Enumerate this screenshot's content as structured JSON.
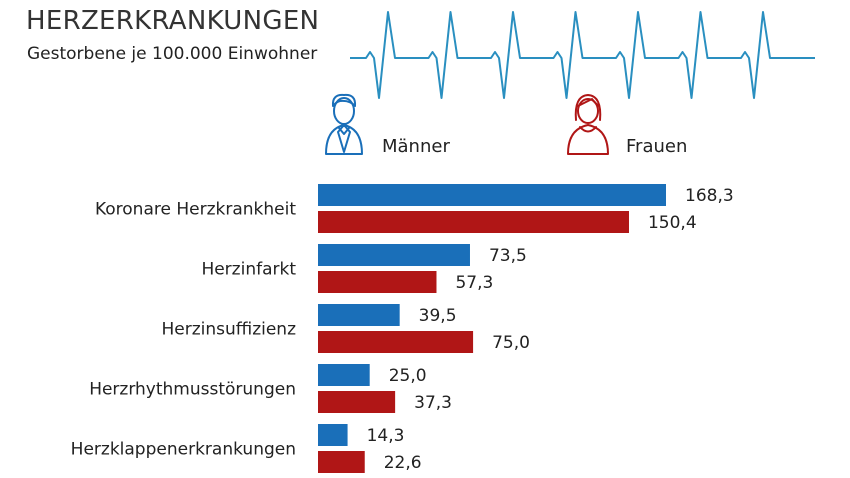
{
  "title": "HERZERKRANKUNGEN",
  "subtitle": "Gestorbene je 100.000 Einwohner",
  "colors": {
    "men": "#1a6fb9",
    "women": "#b01616",
    "ecg": "#2a8fc0"
  },
  "chart_data": {
    "type": "bar",
    "orientation": "horizontal",
    "categories": [
      "Koronare Herzkrankheit",
      "Herzinfarkt",
      "Herzinsuffizienz",
      "Herzrhythmusstörungen",
      "Herzklappenerkrankungen"
    ],
    "series": [
      {
        "name": "Männer",
        "values": [
          168.3,
          73.5,
          39.5,
          25.0,
          14.3
        ],
        "labels": [
          "168,3",
          "73,5",
          "39,5",
          "25,0",
          "14,3"
        ],
        "color": "#1a6fb9",
        "icon": "man-icon"
      },
      {
        "name": "Frauen",
        "values": [
          150.4,
          57.3,
          75.0,
          37.3,
          22.6
        ],
        "labels": [
          "150,4",
          "57,3",
          "75,0",
          "37,3",
          "22,6"
        ],
        "color": "#b01616",
        "icon": "woman-icon"
      }
    ],
    "xlim": [
      0,
      168.3
    ],
    "legend": "top",
    "grid": false
  }
}
